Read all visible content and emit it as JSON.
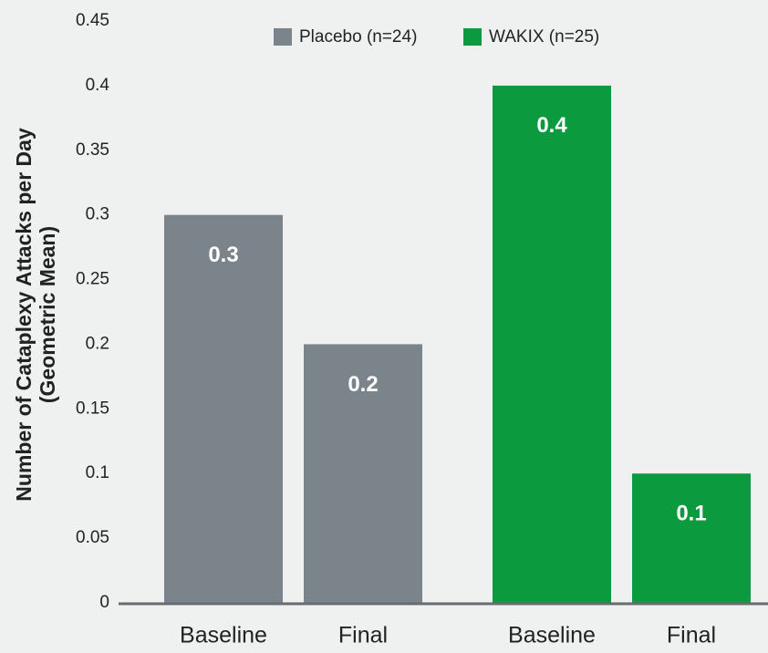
{
  "chart_data": {
    "type": "bar",
    "ylabel": [
      "Number of Cataplexy Attacks per Day",
      "(Geometric Mean)"
    ],
    "categories": [
      "Baseline",
      "Final"
    ],
    "series": [
      {
        "name": "Placebo (n=24)",
        "color": "#7a848a",
        "values": [
          0.3,
          0.2
        ]
      },
      {
        "name": "WAKIX (n=25)",
        "color": "#0b9a3d",
        "values": [
          0.4,
          0.1
        ]
      }
    ],
    "ylim": [
      0,
      0.45
    ],
    "yticks": [
      0,
      0.05,
      0.1,
      0.15,
      0.2,
      0.25,
      0.3,
      0.35,
      0.4,
      0.45
    ],
    "legend": "top",
    "data_labels": true
  }
}
